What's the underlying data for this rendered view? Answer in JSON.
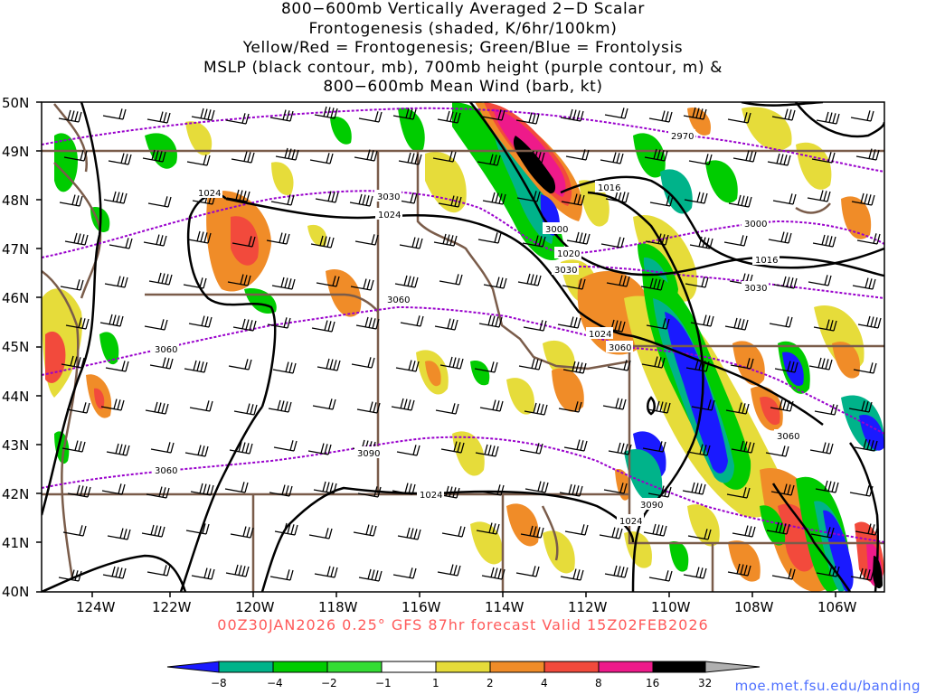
{
  "title": {
    "lines": [
      "800−600mb Vertically Averaged 2−D Scalar",
      "Frontogenesis (shaded, K/6hr/100km)",
      "Yellow/Red = Frontogenesis;  Green/Blue = Frontolysis",
      "MSLP (black contour, mb), 700mb height (purple contour, m) &",
      "800−600mb Mean Wind (barb, kt)"
    ]
  },
  "map": {
    "lat_labels": [
      "50N",
      "49N",
      "48N",
      "47N",
      "46N",
      "45N",
      "44N",
      "43N",
      "42N",
      "41N",
      "40N"
    ],
    "lon_labels": [
      "124W",
      "122W",
      "120W",
      "118W",
      "116W",
      "114W",
      "112W",
      "110W",
      "108W",
      "106W"
    ],
    "mslp_labels": [
      "1024",
      "1024",
      "1016",
      "1016",
      "1020",
      "1024",
      "1024",
      "1024"
    ],
    "height_labels": [
      "2970",
      "3030",
      "3000",
      "3000",
      "3030",
      "3030",
      "3060",
      "3060",
      "3060",
      "3060",
      "3090",
      "3090",
      "3060"
    ],
    "colors": {
      "shade_blue": "#1a1aff",
      "shade_teal": "#00b38a",
      "shade_green": "#00cc00",
      "shade_lightgreen": "#33dd33",
      "shade_yellow": "#e6dc3a",
      "shade_orange": "#f08c28",
      "shade_red": "#f24a3c",
      "shade_magenta": "#ee1a8a",
      "shade_black": "#000000",
      "mslp_contour": "#000000",
      "height_contour": "#9900cc",
      "borders": "#7a5c4a"
    }
  },
  "subtitle": "00Z30JAN2026 0.25° GFS 87hr forecast Valid 15Z02FEB2026",
  "colorbar": {
    "labels": [
      "−8",
      "−4",
      "−2",
      "−1",
      "1",
      "2",
      "4",
      "8",
      "16",
      "32"
    ],
    "colors": [
      "#1a1aff",
      "#00b38a",
      "#00cc00",
      "#33dd33",
      "#ffffff",
      "#e6dc3a",
      "#f08c28",
      "#f24a3c",
      "#ee1a8a",
      "#000000",
      "#b0b0b0"
    ]
  },
  "credit": "moe.met.fsu.edu/banding"
}
